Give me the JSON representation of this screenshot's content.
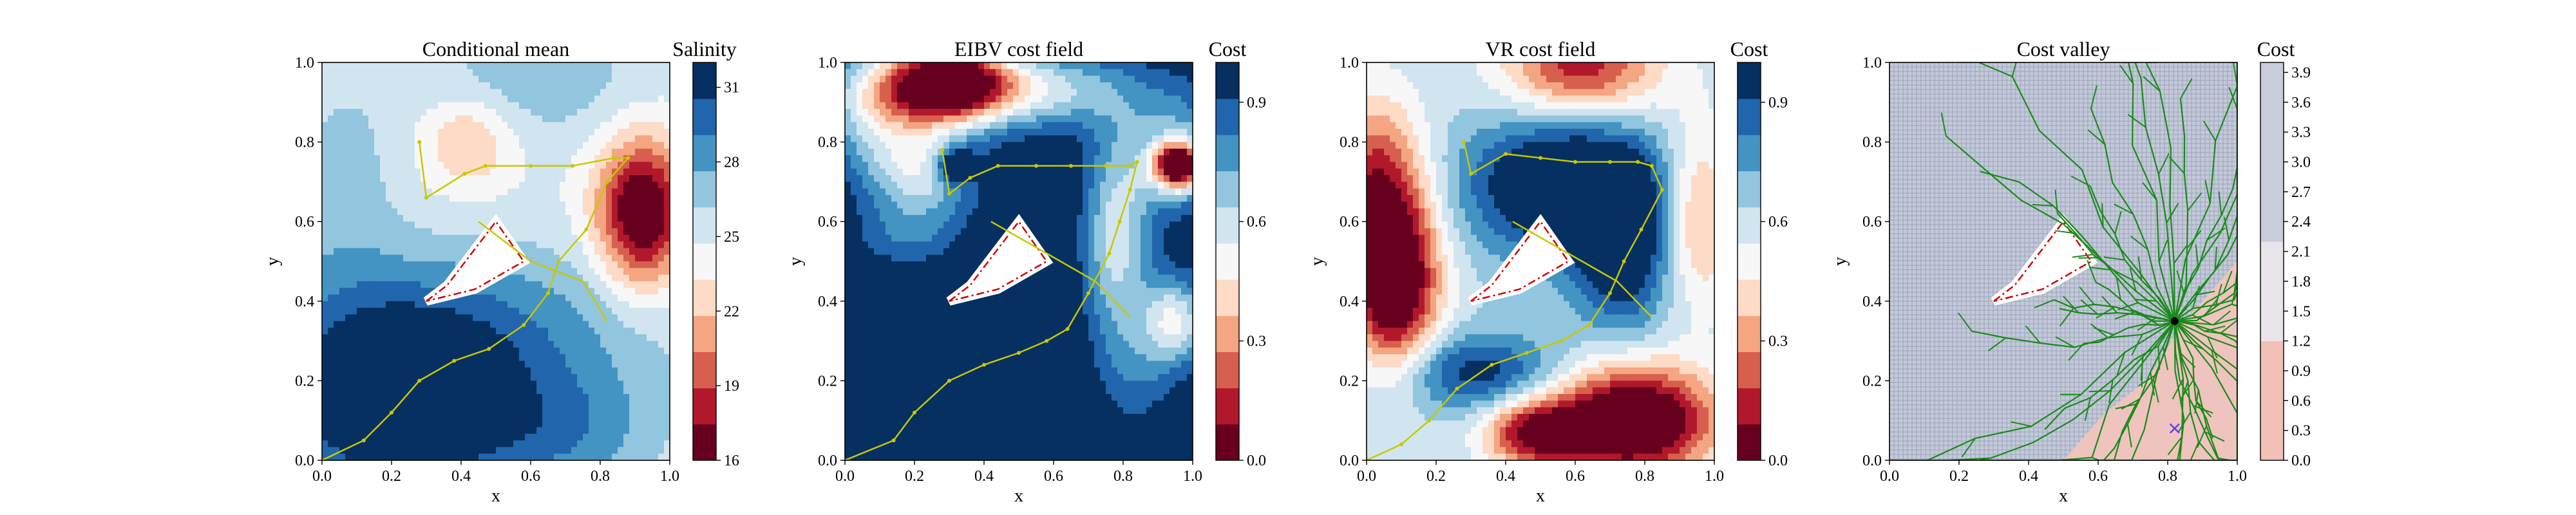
{
  "colors": {
    "rdbu": [
      "#67001f",
      "#b2182b",
      "#d6604d",
      "#f4a582",
      "#fddbc7",
      "#f7f7f7",
      "#d1e5f0",
      "#92c5de",
      "#4393c3",
      "#2166ac",
      "#053061"
    ],
    "path": "#c8c800",
    "boundary": "#d40000",
    "tree": "#1a8a1a",
    "valley_low": "#f2c4bd",
    "valley_grid": "#9aa4bc",
    "marker": "#6a3dff"
  },
  "chart_data": [
    {
      "type": "heatmap",
      "title": "Conditional mean",
      "xlabel": "x",
      "ylabel": "y",
      "xlim": [
        0,
        1
      ],
      "ylim": [
        0,
        1
      ],
      "xticks": [
        "0.0",
        "0.2",
        "0.4",
        "0.6",
        "0.8",
        "1.0"
      ],
      "yticks": [
        "0.0",
        "0.2",
        "0.4",
        "0.6",
        "0.8",
        "1.0"
      ],
      "colorbar": {
        "label": "Salinity",
        "range": [
          16,
          32
        ],
        "ticks": [
          "16",
          "19",
          "22",
          "25",
          "28",
          "31"
        ],
        "tick_values": [
          16,
          19,
          22,
          25,
          28,
          31
        ]
      },
      "field": {
        "base": 24.6,
        "components": [
          {
            "cx": 0.22,
            "cy": 0.12,
            "sx": 0.22,
            "sy": 0.15,
            "amp": 9
          },
          {
            "cx": 0.35,
            "cy": 0.33,
            "sx": 0.45,
            "sy": 0.16,
            "amp": 4.5
          },
          {
            "cx": 0.7,
            "cy": 0.06,
            "sx": 0.2,
            "sy": 0.12,
            "amp": 3.5
          },
          {
            "cx": 0.92,
            "cy": 0.62,
            "sx": 0.09,
            "sy": 0.13,
            "amp": -10
          },
          {
            "cx": 0.42,
            "cy": 0.8,
            "sx": 0.09,
            "sy": 0.08,
            "amp": -3.5
          },
          {
            "cx": 0.62,
            "cy": 0.96,
            "sx": 0.25,
            "sy": 0.12,
            "amp": 2.5
          },
          {
            "cx": 0.06,
            "cy": 0.72,
            "sx": 0.12,
            "sy": 0.2,
            "amp": 2
          }
        ]
      },
      "trajectory": {
        "x": [
          0.0,
          0.12,
          0.2,
          0.28,
          0.38,
          0.48,
          0.58,
          0.65,
          0.68,
          0.76,
          0.82,
          0.88,
          0.84,
          0.72,
          0.6,
          0.47,
          0.41,
          0.3,
          0.28,
          0.28
        ],
        "y": [
          0.0,
          0.05,
          0.12,
          0.2,
          0.25,
          0.28,
          0.34,
          0.42,
          0.5,
          0.58,
          0.7,
          0.76,
          0.76,
          0.74,
          0.74,
          0.74,
          0.72,
          0.66,
          0.8,
          0.8
        ]
      },
      "obstacle": {
        "x": [
          0.3,
          0.36,
          0.5,
          0.58,
          0.44,
          0.3
        ],
        "y": [
          0.4,
          0.44,
          0.6,
          0.5,
          0.43,
          0.4
        ]
      },
      "trajectory2": {
        "x": [
          0.45,
          0.6,
          0.75,
          0.82
        ],
        "y": [
          0.6,
          0.5,
          0.45,
          0.35
        ]
      }
    },
    {
      "type": "heatmap",
      "title": "EIBV cost field",
      "xlabel": "x",
      "ylabel": "y",
      "xlim": [
        0,
        1
      ],
      "ylim": [
        0,
        1
      ],
      "xticks": [
        "0.0",
        "0.2",
        "0.4",
        "0.6",
        "0.8",
        "1.0"
      ],
      "yticks": [
        "0.0",
        "0.2",
        "0.4",
        "0.6",
        "0.8",
        "1.0"
      ],
      "colorbar": {
        "label": "Cost",
        "range": [
          0,
          1
        ],
        "ticks": [
          "0.0",
          "0.3",
          "0.6",
          "0.9"
        ],
        "tick_values": [
          0,
          0.3,
          0.6,
          0.9
        ]
      },
      "field": {
        "base": 1.05,
        "components": [
          {
            "cx": 0.3,
            "cy": 0.95,
            "sx": 0.12,
            "sy": 0.07,
            "amp": -1.1
          },
          {
            "cx": 0.1,
            "cy": 0.9,
            "sx": 0.12,
            "sy": 0.1,
            "amp": -0.5
          },
          {
            "cx": 0.56,
            "cy": 0.93,
            "sx": 0.18,
            "sy": 0.07,
            "amp": -0.45
          },
          {
            "cx": 0.96,
            "cy": 0.74,
            "sx": 0.05,
            "sy": 0.04,
            "amp": -0.95
          },
          {
            "cx": 0.95,
            "cy": 0.78,
            "sx": 0.1,
            "sy": 0.12,
            "amp": -0.35
          },
          {
            "cx": 0.95,
            "cy": 0.35,
            "sx": 0.07,
            "sy": 0.08,
            "amp": -0.5
          },
          {
            "cx": 0.78,
            "cy": 0.55,
            "sx": 0.07,
            "sy": 0.2,
            "amp": -0.45
          },
          {
            "cx": 0.22,
            "cy": 0.72,
            "sx": 0.12,
            "sy": 0.08,
            "amp": -0.45
          },
          {
            "cx": 0.32,
            "cy": 0.74,
            "sx": 0.04,
            "sy": 0.03,
            "amp": 0.45
          },
          {
            "cx": 0.18,
            "cy": 0.56,
            "sx": 0.12,
            "sy": 0.06,
            "amp": -0.2
          },
          {
            "cx": 0.85,
            "cy": 0.2,
            "sx": 0.08,
            "sy": 0.1,
            "amp": -0.15
          }
        ]
      },
      "trajectory": {
        "x": [
          0.0,
          0.14,
          0.2,
          0.3,
          0.4,
          0.5,
          0.58,
          0.64,
          0.7,
          0.76,
          0.79,
          0.82,
          0.84,
          0.82,
          0.75,
          0.65,
          0.55,
          0.44,
          0.36,
          0.3,
          0.28,
          0.28
        ],
        "y": [
          0.0,
          0.05,
          0.12,
          0.2,
          0.24,
          0.27,
          0.3,
          0.33,
          0.42,
          0.52,
          0.6,
          0.68,
          0.75,
          0.74,
          0.74,
          0.74,
          0.74,
          0.74,
          0.71,
          0.67,
          0.78,
          0.78
        ]
      },
      "obstacle": {
        "x": [
          0.3,
          0.36,
          0.5,
          0.58,
          0.44,
          0.3
        ],
        "y": [
          0.4,
          0.44,
          0.6,
          0.5,
          0.43,
          0.4
        ]
      },
      "trajectory2": {
        "x": [
          0.42,
          0.58,
          0.72,
          0.82
        ],
        "y": [
          0.6,
          0.52,
          0.45,
          0.36
        ]
      }
    },
    {
      "type": "heatmap",
      "title": "VR cost field",
      "xlabel": "x",
      "ylabel": "y",
      "xlim": [
        0,
        1
      ],
      "ylim": [
        0,
        1
      ],
      "xticks": [
        "0.0",
        "0.2",
        "0.4",
        "0.6",
        "0.8",
        "1.0"
      ],
      "yticks": [
        "0.0",
        "0.2",
        "0.4",
        "0.6",
        "0.8",
        "1.0"
      ],
      "colorbar": {
        "label": "Cost",
        "range": [
          0,
          1
        ],
        "ticks": [
          "0.0",
          "0.3",
          "0.6",
          "0.9"
        ],
        "tick_values": [
          0,
          0.3,
          0.6,
          0.9
        ]
      },
      "field": {
        "base": 0.62,
        "components": [
          {
            "cx": 0.08,
            "cy": 0.45,
            "sx": 0.09,
            "sy": 0.16,
            "amp": -0.75
          },
          {
            "cx": 0.02,
            "cy": 0.72,
            "sx": 0.1,
            "sy": 0.15,
            "amp": -0.4
          },
          {
            "cx": 0.76,
            "cy": 0.1,
            "sx": 0.17,
            "sy": 0.1,
            "amp": -0.8
          },
          {
            "cx": 0.48,
            "cy": 0.07,
            "sx": 0.1,
            "sy": 0.06,
            "amp": -0.5
          },
          {
            "cx": 0.62,
            "cy": 0.99,
            "sx": 0.16,
            "sy": 0.09,
            "amp": -0.5
          },
          {
            "cx": 0.95,
            "cy": 0.62,
            "sx": 0.08,
            "sy": 0.16,
            "amp": -0.35
          },
          {
            "cx": 0.58,
            "cy": 0.69,
            "sx": 0.2,
            "sy": 0.12,
            "amp": 0.55
          },
          {
            "cx": 0.74,
            "cy": 0.52,
            "sx": 0.1,
            "sy": 0.14,
            "amp": 0.4
          },
          {
            "cx": 0.32,
            "cy": 0.22,
            "sx": 0.18,
            "sy": 0.07,
            "amp": 0.35
          }
        ]
      },
      "trajectory": {
        "x": [
          0.0,
          0.1,
          0.18,
          0.26,
          0.36,
          0.46,
          0.56,
          0.64,
          0.7,
          0.74,
          0.79,
          0.85,
          0.82,
          0.78,
          0.7,
          0.6,
          0.5,
          0.4,
          0.3,
          0.28,
          0.28
        ],
        "y": [
          0.0,
          0.04,
          0.1,
          0.18,
          0.24,
          0.27,
          0.3,
          0.34,
          0.42,
          0.5,
          0.58,
          0.68,
          0.74,
          0.75,
          0.75,
          0.75,
          0.76,
          0.77,
          0.72,
          0.8,
          0.8
        ]
      },
      "obstacle": {
        "x": [
          0.3,
          0.36,
          0.5,
          0.58,
          0.44,
          0.3
        ],
        "y": [
          0.4,
          0.44,
          0.6,
          0.5,
          0.43,
          0.4
        ]
      },
      "trajectory2": {
        "x": [
          0.42,
          0.58,
          0.72,
          0.82
        ],
        "y": [
          0.6,
          0.52,
          0.45,
          0.36
        ]
      }
    },
    {
      "type": "heatmap",
      "title": "Cost valley",
      "xlabel": "x",
      "ylabel": "y",
      "xlim": [
        0,
        1
      ],
      "ylim": [
        0,
        1
      ],
      "xticks": [
        "0.0",
        "0.2",
        "0.4",
        "0.6",
        "0.8",
        "1.0"
      ],
      "yticks": [
        "0.0",
        "0.2",
        "0.4",
        "0.6",
        "0.8",
        "1.0"
      ],
      "colorbar": {
        "label": "Cost",
        "range": [
          0,
          4
        ],
        "ticks": [
          "0.0",
          "0.3",
          "0.6",
          "0.9",
          "1.2",
          "1.5",
          "1.8",
          "2.1",
          "2.4",
          "2.7",
          "3.0",
          "3.3",
          "3.6",
          "3.9"
        ],
        "tick_values": [
          0,
          0.3,
          0.6,
          0.9,
          1.2,
          1.5,
          1.8,
          2.1,
          2.4,
          2.7,
          3.0,
          3.3,
          3.6,
          3.9
        ]
      },
      "valley": {
        "boundary": {
          "x": [
            0.5,
            0.62,
            0.74,
            0.84,
            0.94,
            1.0,
            1.0,
            0.82,
            0.6,
            0.5
          ],
          "y": [
            0.0,
            0.12,
            0.2,
            0.34,
            0.44,
            0.5,
            0.0,
            0.0,
            0.0,
            0.0
          ]
        }
      },
      "tree": {
        "root_x": 0.82,
        "root_y": 0.35,
        "branches": 44,
        "seed": 7
      },
      "current": {
        "x": 0.82,
        "y": 0.35
      },
      "target": {
        "x": 0.82,
        "y": 0.08
      },
      "obstacle": {
        "x": [
          0.3,
          0.36,
          0.5,
          0.58,
          0.44,
          0.3
        ],
        "y": [
          0.4,
          0.44,
          0.6,
          0.5,
          0.43,
          0.4
        ]
      }
    }
  ]
}
